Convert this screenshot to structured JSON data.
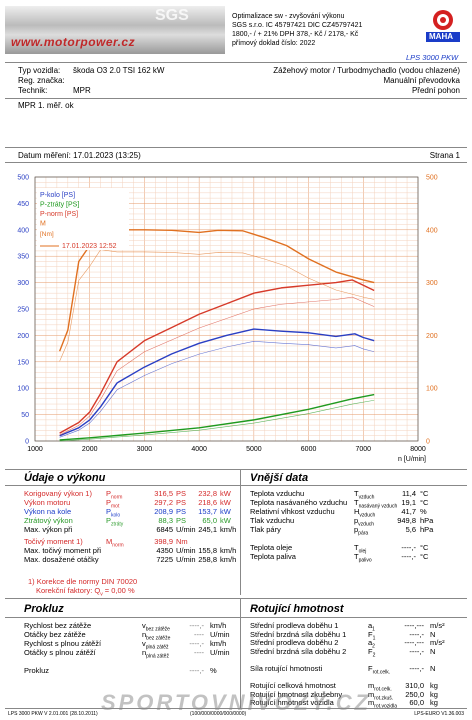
{
  "header": {
    "url": "www.motorpower.cz",
    "logo_text": "SGS",
    "company_lines": [
      "Optimalizace sw - zvyšování výkonu",
      "SGS s.r.o. IC 45797421 DIC CZ45797421",
      "1800,- / + 21% DPH  378,- Kč / 2178,- Kč",
      "přímový doklad číslo:          2022"
    ],
    "maha_label": "MAHA",
    "model": "LPS 3000 PKW"
  },
  "vehicle": {
    "type_label": "Typ vozidla:",
    "type_value": "škoda O3 2.0 TSI 162 kW",
    "reg_label": "Reg. značka:",
    "tech_label": "Technik:",
    "tech_value": "MPR",
    "right1": "Zážehový motor / Turbodmychadlo (vodou chlazené)",
    "right2": "Manuální převodovka",
    "right3": "Přední pohon"
  },
  "note": "MPR 1. měř. ok",
  "date_label": "Datum měření: 17.01.2023 (13:25)",
  "page_label": "Strana 1",
  "chart_data": {
    "type": "line",
    "x_label": "n [U/min]",
    "x_ticks": [
      "1000",
      "2000",
      "3000",
      "4000",
      "5000",
      "6000",
      "7000",
      "8000"
    ],
    "y_left_ticks": [
      "0",
      "50",
      "100",
      "150",
      "200",
      "250",
      "300",
      "350",
      "400",
      "450",
      "500"
    ],
    "y_right_ticks": [
      "0",
      "100",
      "200",
      "300",
      "400",
      "500"
    ],
    "xlim": [
      1000,
      8000
    ],
    "ylim_left": [
      0,
      500
    ],
    "ylim_right": [
      0,
      500
    ],
    "legend": [
      "P-kolo [PS]",
      "P-ztráty [PS]",
      "P-norm [PS]",
      "M",
      "17.01.2023 12:52"
    ],
    "series": [
      {
        "name": "P-kolo [PS]",
        "color": "#2a3fc4",
        "x": [
          1450,
          1800,
          2000,
          2200,
          2500,
          3000,
          3500,
          4000,
          4500,
          5000,
          5500,
          6000,
          6500,
          6845,
          7000,
          7200
        ],
        "y": [
          10,
          25,
          40,
          65,
          110,
          140,
          165,
          185,
          200,
          212,
          208,
          205,
          198,
          203,
          196,
          190
        ]
      },
      {
        "name": "P-ztráty [PS]",
        "color": "#1f9a1f",
        "x": [
          1450,
          2000,
          3000,
          4000,
          5000,
          6000,
          6800,
          7200
        ],
        "y": [
          2,
          6,
          15,
          25,
          40,
          60,
          80,
          88
        ]
      },
      {
        "name": "P-norm [PS]",
        "color": "#d63a2a",
        "x": [
          1450,
          1800,
          2000,
          2200,
          2500,
          3000,
          3500,
          4000,
          4500,
          5000,
          5500,
          6000,
          6500,
          6800,
          7000,
          7200
        ],
        "y": [
          15,
          35,
          55,
          90,
          150,
          190,
          215,
          240,
          260,
          280,
          290,
          295,
          300,
          305,
          295,
          285
        ]
      },
      {
        "name": "M [Nm]",
        "color": "#e07020",
        "x": [
          1450,
          1600,
          1800,
          2000,
          2200,
          2500,
          3000,
          3500,
          4000,
          4350,
          4800,
          5200,
          5600,
          6000,
          6500,
          7000,
          7200
        ],
        "y": [
          170,
          210,
          340,
          370,
          405,
          400,
          400,
          399,
          395,
          399,
          398,
          385,
          370,
          345,
          320,
          305,
          300
        ]
      }
    ]
  },
  "power": {
    "title": "Údaje o výkonu",
    "rows": [
      {
        "label": "Korigovaný výkon 1)",
        "sym": "P",
        "sub": "norm",
        "v1": "316,5",
        "u1": "PS",
        "v2": "232,8",
        "u2": "kW",
        "cls": "red"
      },
      {
        "label": "Výkon motoru",
        "sym": "P",
        "sub": "mot",
        "v1": "297,2",
        "u1": "PS",
        "v2": "218,6",
        "u2": "kW",
        "cls": "red"
      },
      {
        "label": "Výkon na kole",
        "sym": "P",
        "sub": "kolo",
        "v1": "208,9",
        "u1": "PS",
        "v2": "153,7",
        "u2": "kW",
        "cls": "blue"
      },
      {
        "label": "Ztrátový výkon",
        "sym": "P",
        "sub": "ztráty",
        "v1": "88,3",
        "u1": "PS",
        "v2": "65,0",
        "u2": "kW",
        "cls": "green"
      },
      {
        "label": "Max. výkon při",
        "sym": "",
        "sub": "",
        "v1": "6845",
        "u1": "U/min",
        "v2": "245,1",
        "u2": "km/h",
        "cls": ""
      },
      {
        "label": "Točivý moment 1)",
        "sym": "M",
        "sub": "norm",
        "v1": "398,9",
        "u1": "Nm",
        "v2": "",
        "u2": "",
        "cls": "red"
      },
      {
        "label": "Max. točivý moment při",
        "sym": "",
        "sub": "",
        "v1": "4350",
        "u1": "U/min",
        "v2": "155,8",
        "u2": "km/h",
        "cls": ""
      },
      {
        "label": "Max. dosažené otáčky",
        "sym": "",
        "sub": "",
        "v1": "7225",
        "u1": "U/min",
        "v2": "258,8",
        "u2": "km/h",
        "cls": ""
      }
    ],
    "korekce1": "1) Korekce dle normy DIN 70020",
    "korekce2": "Korekční faktory: Q",
    "korekce2_val": "=   0,00 %"
  },
  "external": {
    "title": "Vnější data",
    "rows": [
      {
        "label": "Teplota vzduchu",
        "sym": "T",
        "sub": "vzduch",
        "val": "11,4",
        "unit": "°C"
      },
      {
        "label": "Teplota nasávaného vzduchu",
        "sym": "T",
        "sub": "nasávaný vzduch",
        "val": "19,1",
        "unit": "°C"
      },
      {
        "label": "Relativní vlhkost vzduchu",
        "sym": "H",
        "sub": "vzduch",
        "val": "41,7",
        "unit": "%"
      },
      {
        "label": "Tlak vzduchu",
        "sym": "p",
        "sub": "vzduch",
        "val": "949,8",
        "unit": "hPa"
      },
      {
        "label": "Tlak páry",
        "sym": "p",
        "sub": "pára",
        "val": "5,6",
        "unit": "hPa"
      },
      {
        "label": "",
        "sym": "",
        "sub": "",
        "val": "",
        "unit": ""
      },
      {
        "label": "Teplota oleje",
        "sym": "T",
        "sub": "olej",
        "val": "----,-",
        "unit": "°C"
      },
      {
        "label": "Teplota paliva",
        "sym": "T",
        "sub": "palivo",
        "val": "----,-",
        "unit": "°C"
      }
    ]
  },
  "prokluz": {
    "title": "Prokluz",
    "rows": [
      {
        "label": "Rychlost bez zátěže",
        "sym": "v",
        "sub": "bez zátěže",
        "val": "----,-",
        "unit": "km/h"
      },
      {
        "label": "Otáčky bez zátěže",
        "sym": "n",
        "sub": "bez zátěže",
        "val": "----",
        "unit": "U/min"
      },
      {
        "label": "Rychlost s plnou zátěží",
        "sym": "v",
        "sub": "plná zátěž",
        "val": "----,-",
        "unit": "km/h"
      },
      {
        "label": "Otáčky s plnou zátěží",
        "sym": "n",
        "sub": "plná zátěž",
        "val": "----",
        "unit": "U/min"
      },
      {
        "label": "",
        "sym": "",
        "sub": "",
        "val": "",
        "unit": ""
      },
      {
        "label": "Prokluz",
        "sym": "",
        "sub": "",
        "val": "----,-",
        "unit": "%"
      }
    ]
  },
  "rot": {
    "title": "Rotující hmotnost",
    "rows": [
      {
        "label": "Střední prodleva doběhu 1",
        "sym": "a",
        "sub": "1",
        "val": "----,---",
        "unit": "m/s²"
      },
      {
        "label": "Střední brzdná síla doběhu 1",
        "sym": "F",
        "sub": "1",
        "val": "----,-",
        "unit": "N"
      },
      {
        "label": "Střední prodleva doběhu 2",
        "sym": "a",
        "sub": "2",
        "val": "----,---",
        "unit": "m/s²"
      },
      {
        "label": "Střední brzdná síla doběhu 2",
        "sym": "F",
        "sub": "2",
        "val": "----,-",
        "unit": "N"
      },
      {
        "label": "",
        "sym": "",
        "sub": "",
        "val": "",
        "unit": ""
      },
      {
        "label": "Síla rotující hmotnosti",
        "sym": "F",
        "sub": "rot.celk.",
        "val": "----,-",
        "unit": "N"
      },
      {
        "label": "",
        "sym": "",
        "sub": "",
        "val": "",
        "unit": ""
      },
      {
        "label": "Rotující celková hmotnost",
        "sym": "m",
        "sub": "rot.celk.",
        "val": "310,0",
        "unit": "kg"
      },
      {
        "label": "Rotující hmotnost zkušebny",
        "sym": "m",
        "sub": "rot.zkuš.",
        "val": "250,0",
        "unit": "kg"
      },
      {
        "label": "Rotující hmotnost vozidla",
        "sym": "m",
        "sub": "rot.vozidla",
        "val": "60,0",
        "unit": "kg"
      }
    ]
  },
  "watermark": "SPORTOVNIVOZY.CZ",
  "footer": {
    "left": "LPS 3000 PKW V 2.01.001 (28.10.2011)",
    "center": "(100/000/0000/000/0000)",
    "right": "LPS-EURO V1.36.003"
  }
}
